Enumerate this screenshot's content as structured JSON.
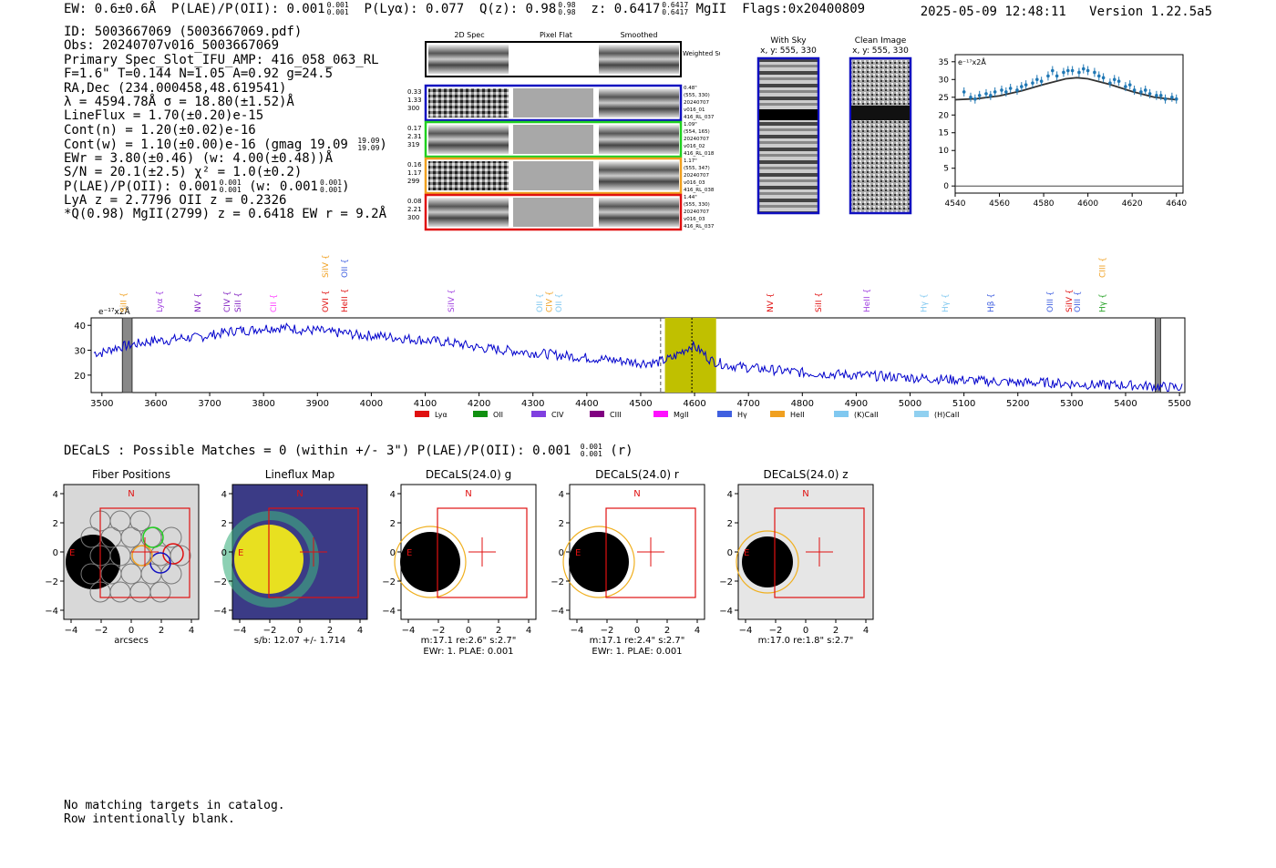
{
  "header": {
    "line": "EW: 0.6±0.6Å  P(LAE)/P(OII): 0.001  P(Lyα): 0.077  Q(z): 0.98  z: 0.6417  MgII  Flags:0x20400809",
    "ew_label": "EW: 0.6±0.6Å",
    "plae_label": "P(LAE)/P(OII): 0.001",
    "plae_frac": [
      "0.001",
      "0.001"
    ],
    "plya_label": "P(Lyα): 0.077",
    "qz_label": "Q(z): 0.98",
    "qz_frac": [
      "0.98",
      "0.98"
    ],
    "z_label": "z: 0.6417",
    "z_frac": [
      "0.6417",
      "0.6417"
    ],
    "line_id": "MgII",
    "flags": "Flags:0x20400809",
    "datetime": "2025-05-09 12:48:11",
    "version": "Version 1.22.5a5"
  },
  "info": {
    "id": "ID: 5003667069 (5003667069.pdf)",
    "obs": "Obs: 20240707v016_5003667069",
    "primary": "Primary Spec_Slot_IFU_AMP: 416_058_063_RL",
    "params": "F=1.6\"  T=0.144  N=1.05  A=0.92  g=24.5",
    "radec": "RA,Dec (234.000458,48.619541)",
    "lambda": "λ = 4594.78Å  σ = 18.80(±1.52)Å",
    "lineflux": "LineFlux = 1.70(±0.20)e-15",
    "contn": "Cont(n) = 1.20(±0.02)e-16",
    "contw": "Cont(w) = 1.10(±0.00)e-16 (gmag 19.09",
    "contw_frac": [
      "19.09",
      "19.09"
    ],
    "ewr": "EWr = 3.80(±0.46) (w: 4.00(±0.48))Å",
    "sn": "S/N = 20.1(±2.5)  χ² = 1.0(±0.2)",
    "plae": "P(LAE)/P(OII): 0.001",
    "plae_w": "(w: 0.001",
    "plae_frac": [
      "0.001",
      "0.001"
    ],
    "lya": "LyA z = 2.7796  OII z = 0.2326",
    "q": "*Q(0.98) MgII(2799) z = 0.6418  EW r = 9.2Å"
  },
  "cutouts": {
    "col_titles": [
      "2D Spec",
      "Pixel Flat",
      "Smoothed"
    ],
    "weighted_label": "Weighted Sum",
    "rows": [
      {
        "left": [
          "0.33",
          "1.33",
          "300"
        ],
        "right": [
          "0.48\"",
          "(555, 330)",
          "20240707",
          "v016_01",
          "416_RL_037"
        ],
        "color": "#1010c0"
      },
      {
        "left": [
          "0.17",
          "2.31",
          "319"
        ],
        "right": [
          "1.09\"",
          "(554, 165)",
          "20240707",
          "v016_02",
          "416_RL_018"
        ],
        "color": "#20d020"
      },
      {
        "left": [
          "0.16",
          "1.17",
          "299"
        ],
        "right": [
          "1.17\"",
          "(555, 347)",
          "20240707",
          "v016_03",
          "416_RL_038"
        ],
        "color": "#f0a020"
      },
      {
        "left": [
          "0.08",
          "2.21",
          "300"
        ],
        "right": [
          "1.44\"",
          "(555, 330)",
          "20240707",
          "v016_03",
          "416_RL_037"
        ],
        "color": "#e01010"
      }
    ]
  },
  "sky": {
    "with_sky_title": "With Sky",
    "with_sky_coords": "x, y: 555, 330",
    "clean_title": "Clean Image",
    "clean_coords": "x, y: 555, 330"
  },
  "zoom_chart": {
    "unit_label": "e⁻¹⁷x2Å",
    "x_ticks": [
      "4540",
      "4560",
      "4580",
      "4600",
      "4620",
      "4640"
    ],
    "y_ticks": [
      "0",
      "5",
      "10",
      "15",
      "20",
      "25",
      "30",
      "35"
    ],
    "color_points": "#1f77b4",
    "color_fit": "#333333"
  },
  "chart_data": [
    {
      "type": "scatter",
      "title": "",
      "xlabel": "",
      "ylabel": "e⁻¹⁷x2Å",
      "xlim": [
        4540,
        4643
      ],
      "ylim": [
        -2,
        37
      ],
      "x": [
        4544,
        4547,
        4549,
        4551,
        4554,
        4556,
        4558,
        4561,
        4563,
        4565,
        4568,
        4570,
        4572,
        4575,
        4577,
        4579,
        4582,
        4584,
        4586,
        4589,
        4591,
        4593,
        4596,
        4598,
        4600,
        4603,
        4605,
        4607,
        4610,
        4612,
        4614,
        4617,
        4619,
        4621,
        4624,
        4626,
        4628,
        4631,
        4633,
        4635,
        4638,
        4640
      ],
      "y": [
        26.5,
        25,
        24.5,
        25.5,
        26,
        25.5,
        26.5,
        27,
        26.5,
        27.5,
        27,
        28,
        28.5,
        29,
        30,
        29.5,
        31,
        32.5,
        31,
        32,
        32.5,
        32.5,
        32,
        33,
        32.5,
        32,
        31,
        30.5,
        29,
        30,
        29.5,
        28,
        28.5,
        27,
        26.5,
        27,
        26,
        25.5,
        25.5,
        24.5,
        25,
        24.5
      ],
      "fit": {
        "x": [
          4540,
          4550,
          4560,
          4570,
          4580,
          4590,
          4595,
          4600,
          4610,
          4620,
          4630,
          4640
        ],
        "y": [
          24.3,
          24.6,
          25.4,
          26.8,
          28.6,
          30.2,
          30.5,
          30.2,
          28.6,
          26.6,
          25.0,
          24.3
        ]
      }
    },
    {
      "type": "line",
      "title": "",
      "xlabel": "",
      "ylabel": "e⁻¹⁷x2Å",
      "xlim": [
        3480,
        5510
      ],
      "ylim": [
        13,
        43
      ],
      "x_ticks": [
        3500,
        3600,
        3700,
        3800,
        3900,
        4000,
        4100,
        4200,
        4300,
        4400,
        4500,
        4600,
        4700,
        4800,
        4900,
        5000,
        5100,
        5200,
        5300,
        5400,
        5500
      ],
      "y_ticks": [
        20,
        30,
        40
      ],
      "x": [
        3500,
        3525,
        3550,
        3575,
        3600,
        3625,
        3650,
        3675,
        3700,
        3725,
        3750,
        3775,
        3800,
        3825,
        3850,
        3875,
        3900,
        3925,
        3950,
        3975,
        4000,
        4050,
        4100,
        4150,
        4200,
        4250,
        4300,
        4350,
        4400,
        4450,
        4500,
        4530,
        4560,
        4580,
        4595,
        4610,
        4630,
        4660,
        4700,
        4750,
        4800,
        4850,
        4900,
        4950,
        5000,
        5050,
        5100,
        5150,
        5200,
        5250,
        5300,
        5350,
        5400,
        5450,
        5500
      ],
      "y": [
        29,
        31,
        32,
        33,
        34,
        34,
        35,
        35,
        36,
        37,
        38,
        38,
        39,
        39,
        39,
        38,
        38,
        37,
        37,
        36,
        36,
        35,
        34,
        33,
        31,
        30,
        29,
        28,
        27,
        26,
        25,
        25,
        27,
        30,
        32,
        30,
        26,
        24,
        23,
        22,
        21,
        20.5,
        20,
        19.5,
        19,
        18.5,
        18,
        17.5,
        17,
        17,
        16.5,
        16,
        16,
        15.5,
        15
      ],
      "dashed_line_x": 4537,
      "center_line_x": 4595,
      "highlight_band": [
        4545,
        4640
      ],
      "masked_bands": [
        [
          3538,
          3556
        ],
        [
          5455,
          5465
        ]
      ],
      "line_labels": [
        {
          "name": "SiII",
          "x": 3540,
          "color": "#f0a020",
          "tier": 0
        },
        {
          "name": "Lyα",
          "x": 3607,
          "color": "#a040e0",
          "tier": 0
        },
        {
          "name": "NV",
          "x": 3678,
          "color": "#8020c0",
          "tier": 0
        },
        {
          "name": "CIV",
          "x": 3732,
          "color": "#8020c0",
          "tier": 0
        },
        {
          "name": "SiII",
          "x": 3752,
          "color": "#8020c0",
          "tier": 0
        },
        {
          "name": "CII",
          "x": 3818,
          "color": "#ff40ff",
          "tier": 0
        },
        {
          "name": "SiIV",
          "x": 3915,
          "color": "#f0a020",
          "tier": 1
        },
        {
          "name": "OII",
          "x": 3950,
          "color": "#4060e0",
          "tier": 1
        },
        {
          "name": "OVI",
          "x": 3915,
          "color": "#e01010",
          "tier": 0
        },
        {
          "name": "HeII",
          "x": 3950,
          "color": "#e01010",
          "tier": 0
        },
        {
          "name": "SiIV",
          "x": 4148,
          "color": "#a040e0",
          "tier": 0
        },
        {
          "name": "OII",
          "x": 4312,
          "color": "#80c8f0",
          "tier": 0
        },
        {
          "name": "CIV",
          "x": 4330,
          "color": "#f0a020",
          "tier": 0
        },
        {
          "name": "OII",
          "x": 4348,
          "color": "#80c8f0",
          "tier": 0
        },
        {
          "name": "NV",
          "x": 4740,
          "color": "#e01010",
          "tier": 0
        },
        {
          "name": "SiII",
          "x": 4830,
          "color": "#e01010",
          "tier": 0
        },
        {
          "name": "HeII",
          "x": 4920,
          "color": "#a040e0",
          "tier": 0
        },
        {
          "name": "Hγ",
          "x": 5025,
          "color": "#80c8f0",
          "tier": 0
        },
        {
          "name": "Hγ",
          "x": 5065,
          "color": "#80c8f0",
          "tier": 0
        },
        {
          "name": "Hβ",
          "x": 5150,
          "color": "#4060e0",
          "tier": 0
        },
        {
          "name": "OIII",
          "x": 5260,
          "color": "#4060e0",
          "tier": 0
        },
        {
          "name": "SiIV",
          "x": 5295,
          "color": "#e01010",
          "tier": 0
        },
        {
          "name": "OIII",
          "x": 5310,
          "color": "#4060e0",
          "tier": 0
        },
        {
          "name": "CIII",
          "x": 5357,
          "color": "#f0a020",
          "tier": 1
        },
        {
          "name": "Hγ",
          "x": 5357,
          "color": "#20a020",
          "tier": 0
        }
      ]
    }
  ],
  "spectrum_legend": [
    {
      "label": "Lyα",
      "color": "#e01010"
    },
    {
      "label": "OII",
      "color": "#109010"
    },
    {
      "label": "CIV",
      "color": "#8040e0"
    },
    {
      "label": "CIII",
      "color": "#800080"
    },
    {
      "label": "MgII",
      "color": "#ff10ff"
    },
    {
      "label": "Hγ",
      "color": "#4060e0"
    },
    {
      "label": "HeII",
      "color": "#f0a020"
    },
    {
      "label": "(K)CaII",
      "color": "#80c8f0"
    },
    {
      "label": "(H)CaII",
      "color": "#90d0f0"
    }
  ],
  "spectrum_unit_label": "e⁻¹⁷x2Å",
  "decals": {
    "title": "DECaLS : Possible Matches = 0 (within +/- 3\")  P(LAE)/P(OII): 0.001",
    "title_frac": [
      "0.001",
      "0.001"
    ],
    "title_suffix": "(r)",
    "north_label": "N",
    "east_label": "E",
    "axis_ticks": [
      "−4",
      "−2",
      "0",
      "2",
      "4"
    ],
    "panels": [
      {
        "title": "Fiber Positions",
        "caption1": "arcsecs",
        "caption2": ""
      },
      {
        "title": "Lineflux Map",
        "caption1": "s/b: 12.07 +/- 1.714",
        "caption2": ""
      },
      {
        "title": "DECaLS(24.0) g",
        "caption1": "m:17.1  re:2.6\"  s:2.7\"",
        "caption2": "EWr: 1. PLAE: 0.001"
      },
      {
        "title": "DECaLS(24.0) r",
        "caption1": "m:17.1  re:2.4\"  s:2.7\"",
        "caption2": "EWr: 1. PLAE: 0.001"
      },
      {
        "title": "DECaLS(24.0) z",
        "caption1": "m:17.0  re:1.8\"  s:2.7\"",
        "caption2": ""
      }
    ]
  },
  "footer": {
    "line1": "No matching targets in catalog.",
    "line2": "Row intentionally blank."
  }
}
